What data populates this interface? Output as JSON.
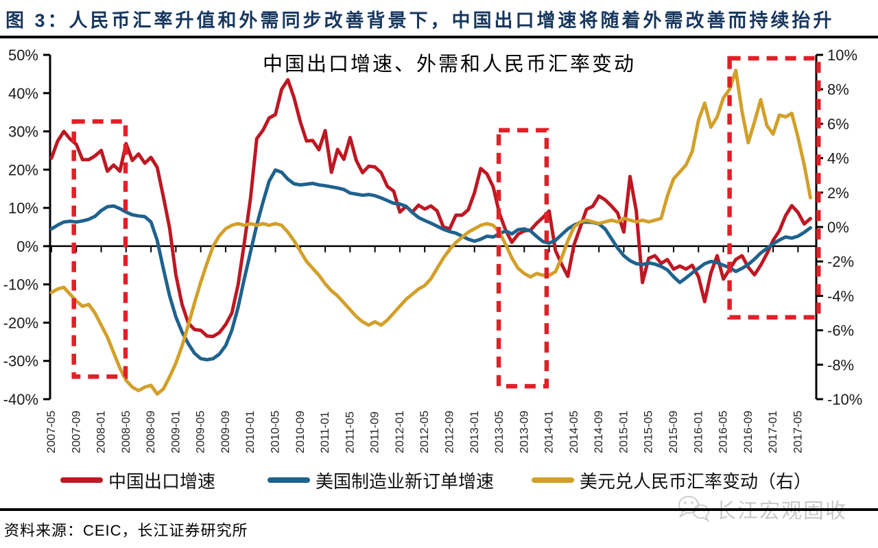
{
  "page": {
    "title": "图 3：人民币汇率升值和外需同步改善背景下，中国出口增速将随着外需改善而持续抬升",
    "title_color": "#17375e",
    "source": "资料来源：CEIC，长江证券研究所",
    "watermark": "长江宏观固收"
  },
  "chart_data": {
    "type": "line",
    "title": "中国出口增速、外需和人民币汇率变动",
    "x_monthly_start": "2007-05",
    "x_monthly_end": "2017-07",
    "x_tick_every_months": 4,
    "x_tick_labels": [
      "2007-05",
      "2007-09",
      "2008-01",
      "2008-05",
      "2008-09",
      "2009-01",
      "2009-05",
      "2009-09",
      "2010-01",
      "2010-05",
      "2010-09",
      "2011-01",
      "2011-05",
      "2011-09",
      "2012-01",
      "2012-05",
      "2012-09",
      "2013-01",
      "2013-05",
      "2013-09",
      "2014-01",
      "2014-05",
      "2014-09",
      "2015-01",
      "2015-05",
      "2015-09",
      "2016-01",
      "2016-05",
      "2016-09",
      "2017-01",
      "2017-05"
    ],
    "grid": "off",
    "legend_position": "bottom",
    "left_axis": {
      "max": 50,
      "min": -40,
      "step": 10,
      "labels": [
        "50%",
        "40%",
        "30%",
        "20%",
        "10%",
        "0%",
        "-10%",
        "-20%",
        "-30%",
        "-40%"
      ]
    },
    "right_axis": {
      "max": 10,
      "min": -10,
      "step": 2,
      "labels": [
        "10%",
        "8%",
        "6%",
        "4%",
        "2%",
        "0%",
        "-2%",
        "-4%",
        "-6%",
        "-8%",
        "-10%"
      ]
    },
    "series": [
      {
        "id": "china-export-growth-line",
        "name": "中国出口增速",
        "axis": "left",
        "color": "#bd1823",
        "values": [
          23.0,
          27.5,
          30.0,
          28.0,
          26.6,
          22.6,
          22.6,
          23.6,
          25.0,
          19.6,
          21.2,
          19.6,
          26.8,
          22.4,
          24.1,
          21.7,
          23.2,
          20.6,
          12.8,
          4.7,
          -7.5,
          -15.3,
          -20.1,
          -21.8,
          -22.0,
          -23.5,
          -23.6,
          -22.6,
          -20.5,
          -17.5,
          -10.1,
          0.9,
          12.5,
          28.1,
          30.3,
          33.5,
          34.4,
          41.0,
          43.5,
          38.8,
          32.5,
          27.5,
          27.6,
          25.2,
          30.2,
          19.3,
          25.3,
          22.7,
          28.4,
          22.4,
          19.2,
          20.9,
          20.7,
          19.2,
          15.6,
          14.4,
          8.9,
          10.4,
          8.9,
          10.7,
          9.7,
          10.5,
          9.2,
          5.0,
          4.5,
          8.1,
          8.1,
          9.5,
          14.0,
          20.3,
          18.9,
          15.5,
          8.6,
          4.2,
          1.0,
          3.1,
          4.0,
          4.2,
          6.0,
          7.5,
          9.2,
          -1.1,
          -4.7,
          -7.9,
          0.4,
          5.0,
          9.6,
          10.4,
          13.1,
          12.1,
          10.5,
          8.7,
          3.7,
          18.2,
          9.2,
          -9.5,
          -3.2,
          -2.5,
          -4.5,
          -3.5,
          -6.0,
          -5.2,
          -6.0,
          -5.0,
          -8.0,
          -14.5,
          -7.0,
          -2.5,
          -8.6,
          -6.0,
          -3.5,
          -2.5,
          -5.5,
          -7.5,
          -5.0,
          -2.0,
          1.5,
          4.0,
          8.0,
          10.6,
          8.8,
          5.8,
          7.2
        ]
      },
      {
        "id": "us-manufacturing-new-orders-line",
        "name": "美国制造业新订单增速",
        "axis": "left",
        "color": "#1f628e",
        "values": [
          4.5,
          5.5,
          6.3,
          6.5,
          6.3,
          6.6,
          7.0,
          7.8,
          9.3,
          10.3,
          10.5,
          9.8,
          8.9,
          8.2,
          7.9,
          7.7,
          6.3,
          1.5,
          -6.0,
          -13.0,
          -18.5,
          -22.5,
          -25.5,
          -28.0,
          -29.4,
          -29.7,
          -29.4,
          -28.2,
          -26.0,
          -22.0,
          -16.0,
          -8.5,
          -1.5,
          5.5,
          11.5,
          17.0,
          19.9,
          19.3,
          17.5,
          16.3,
          16.0,
          16.2,
          16.4,
          16.0,
          15.8,
          15.5,
          15.2,
          14.8,
          13.9,
          13.6,
          13.3,
          13.5,
          13.2,
          12.6,
          11.9,
          11.2,
          11.0,
          10.4,
          8.8,
          7.5,
          6.7,
          6.0,
          5.2,
          4.4,
          3.8,
          3.4,
          2.6,
          1.8,
          1.3,
          1.8,
          2.6,
          2.4,
          3.2,
          4.0,
          3.2,
          4.3,
          4.5,
          4.0,
          2.5,
          1.2,
          0.8,
          1.5,
          3.0,
          4.5,
          5.5,
          6.2,
          6.3,
          6.2,
          5.8,
          4.5,
          2.0,
          -0.5,
          -2.5,
          -3.8,
          -4.6,
          -4.8,
          -4.4,
          -4.7,
          -5.3,
          -6.2,
          -8.0,
          -9.5,
          -8.3,
          -7.0,
          -5.8,
          -4.6,
          -4.0,
          -4.3,
          -5.0,
          -5.6,
          -6.6,
          -5.8,
          -4.8,
          -3.4,
          -1.8,
          -0.6,
          0.6,
          1.6,
          2.4,
          2.1,
          2.6,
          3.6,
          4.8
        ]
      },
      {
        "id": "usd-cny-change-line",
        "name": "美元兑人民币汇率变动（右）",
        "axis": "right",
        "color": "#d2a02a",
        "values": [
          -3.8,
          -3.6,
          -3.5,
          -3.9,
          -4.3,
          -4.6,
          -4.5,
          -5.0,
          -5.7,
          -6.4,
          -7.3,
          -8.2,
          -8.9,
          -9.3,
          -9.5,
          -9.3,
          -9.2,
          -9.7,
          -9.4,
          -8.7,
          -7.9,
          -6.9,
          -5.7,
          -4.4,
          -3.2,
          -2.1,
          -1.1,
          -0.5,
          -0.1,
          0.1,
          0.2,
          0.1,
          0.2,
          0.1,
          0.2,
          0.1,
          0.2,
          0.1,
          -0.3,
          -0.8,
          -1.4,
          -2.0,
          -2.4,
          -2.8,
          -3.3,
          -3.7,
          -4.0,
          -4.4,
          -4.8,
          -5.2,
          -5.5,
          -5.7,
          -5.5,
          -5.7,
          -5.4,
          -5.0,
          -4.6,
          -4.2,
          -3.9,
          -3.6,
          -3.4,
          -3.0,
          -2.4,
          -1.8,
          -1.3,
          -0.9,
          -0.6,
          -0.3,
          -0.1,
          0.1,
          0.2,
          0.1,
          -0.3,
          -1.0,
          -1.8,
          -2.4,
          -2.7,
          -2.9,
          -2.7,
          -2.8,
          -2.8,
          -2.6,
          -1.8,
          -0.8,
          0.0,
          0.3,
          0.4,
          0.3,
          0.2,
          0.3,
          0.4,
          0.3,
          0.5,
          0.4,
          0.3,
          0.4,
          0.3,
          0.4,
          0.5,
          1.8,
          2.8,
          3.2,
          3.6,
          4.4,
          6.2,
          7.2,
          5.8,
          6.4,
          7.5,
          8.0,
          9.1,
          6.7,
          4.9,
          6.1,
          7.4,
          5.9,
          5.4,
          6.5,
          6.4,
          6.6,
          5.2,
          3.6,
          1.7
        ]
      }
    ],
    "highlight_boxes": [
      {
        "m0": 3.6,
        "m1": 11.9,
        "v0": 32.6,
        "v1": -34.1
      },
      {
        "m0": 71.9,
        "m1": 79.6,
        "v0": 30.3,
        "v1": -36.6
      },
      {
        "m0": 109.0,
        "m1": 123.3,
        "v0": 49.1,
        "v1": -18.6
      }
    ],
    "box_color": "#e02028"
  }
}
